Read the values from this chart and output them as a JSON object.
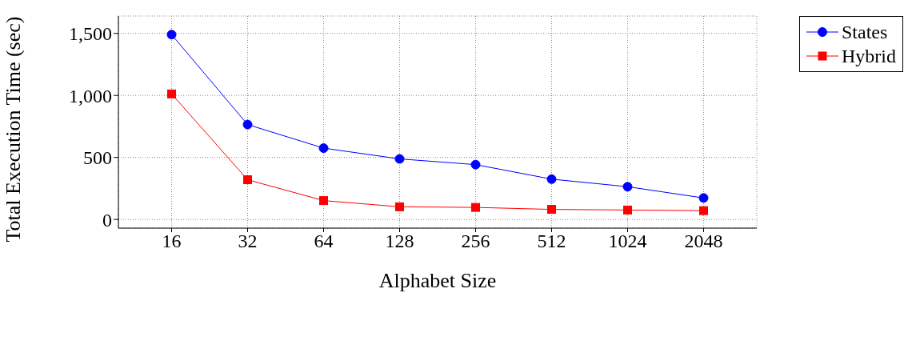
{
  "chart_data": {
    "type": "line",
    "xlabel": "Alphabet Size",
    "ylabel": "Total Execution Time (sec)",
    "categories": [
      "16",
      "32",
      "64",
      "128",
      "256",
      "512",
      "1024",
      "2048"
    ],
    "series": [
      {
        "name": "States",
        "color": "#0000ff",
        "marker": "circle",
        "values": [
          1490,
          765,
          575,
          488,
          442,
          325,
          264,
          173
        ]
      },
      {
        "name": "Hybrid",
        "color": "#ff0000",
        "marker": "square",
        "values": [
          1012,
          320,
          152,
          102,
          97,
          81,
          76,
          71
        ]
      }
    ],
    "ylim": [
      -70,
      1640
    ],
    "yticks": [
      0,
      500,
      {
        "value": 1000,
        "label": "1,000"
      },
      {
        "value": 1500,
        "label": "1,500"
      }
    ],
    "grid": true,
    "legend": "top right",
    "line_style": "solid"
  }
}
